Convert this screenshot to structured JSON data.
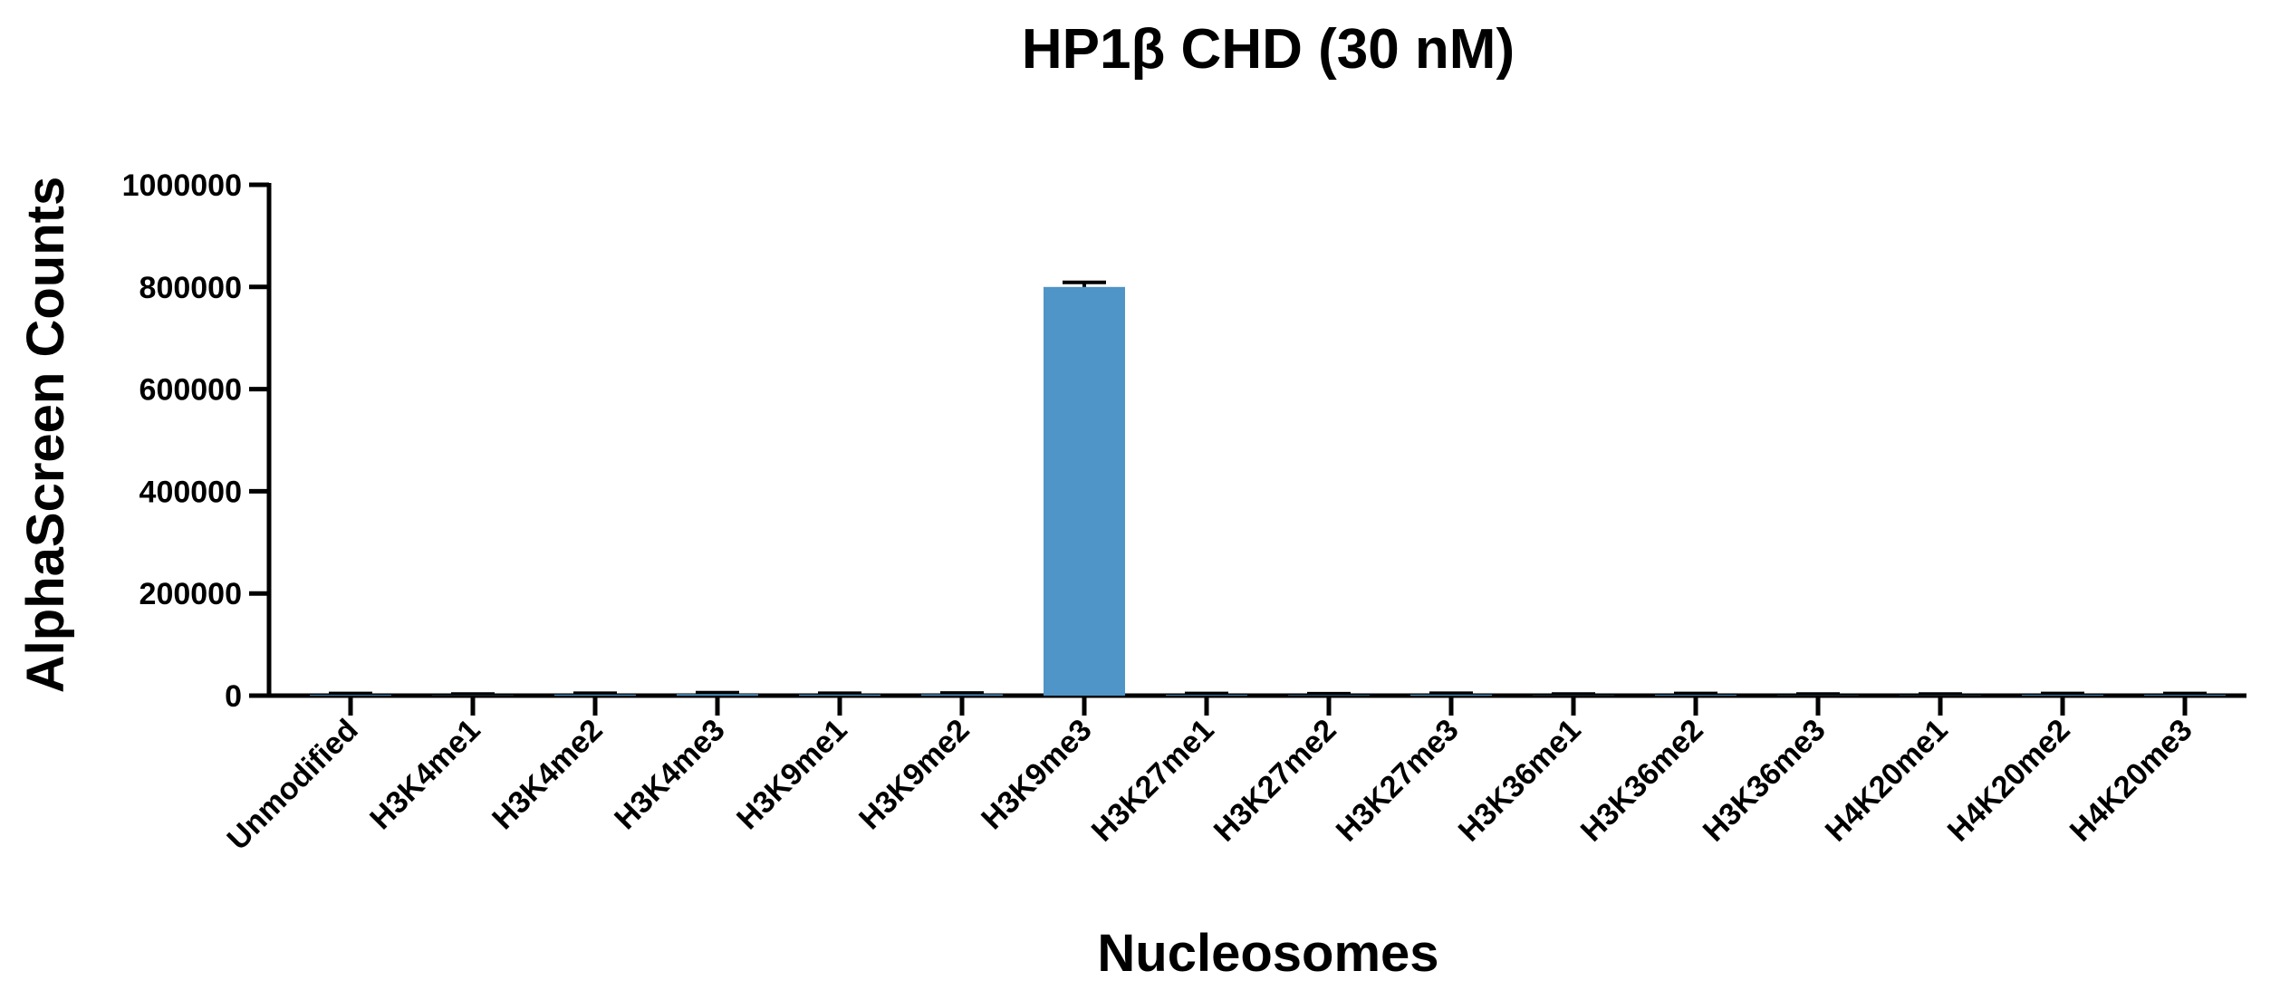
{
  "chart_data": {
    "type": "bar",
    "title": "HP1β CHD (30 nM)",
    "xlabel": "Nucleosomes",
    "ylabel": "AlphaScreen  Counts",
    "categories": [
      "Unmodified",
      "H3K4me1",
      "H3K4me2",
      "H3K4me3",
      "H3K9me1",
      "H3K9me2",
      "H3K9me3",
      "H3K27me1",
      "H3K27me2",
      "H3K27me3",
      "H3K36me1",
      "H3K36me2",
      "H3K36me3",
      "H4K20me1",
      "H4K20me2",
      "H4K20me3"
    ],
    "values": [
      1500,
      500,
      2000,
      3000,
      2000,
      2500,
      800000,
      1500,
      1000,
      2000,
      500,
      1500,
      500,
      500,
      1500,
      1500
    ],
    "errors": [
      0,
      0,
      0,
      0,
      0,
      0,
      9000,
      0,
      0,
      0,
      0,
      0,
      0,
      0,
      0,
      0
    ],
    "ylim": [
      0,
      1000000
    ],
    "yticks": [
      0,
      200000,
      400000,
      600000,
      800000,
      1000000
    ],
    "ytick_labels": [
      "0",
      "200000",
      "400000",
      "600000",
      "800000",
      "1000000"
    ],
    "grid": false,
    "colors": {
      "bar": "#4F95C7",
      "axis": "#000000"
    }
  }
}
